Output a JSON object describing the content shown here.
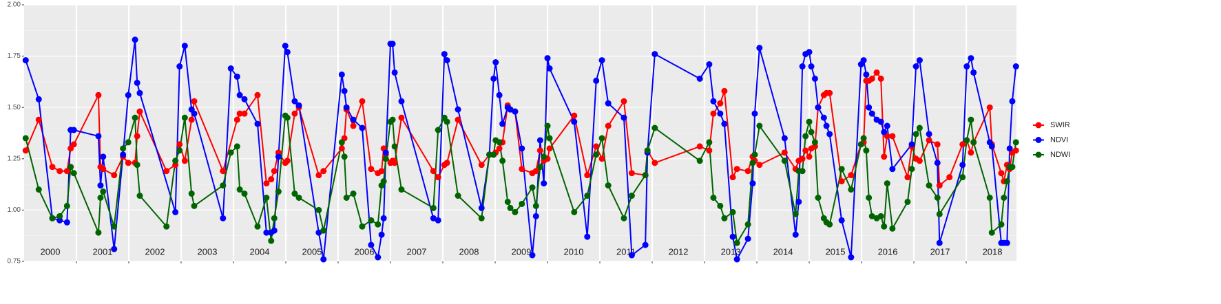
{
  "chart_data": {
    "type": "line",
    "xlim": [
      2000,
      2018.96
    ],
    "ylim": [
      0.75,
      2.0
    ],
    "yticks": [
      {
        "value": 0.75,
        "label": "0.75"
      },
      {
        "value": 1,
        "label": "1.00"
      },
      {
        "value": 1.25,
        "label": "1.25"
      },
      {
        "value": 1.5,
        "label": "1.50"
      },
      {
        "value": 1.75,
        "label": "1.75"
      },
      {
        "value": 2,
        "label": "2.00"
      }
    ],
    "xticks": [
      2001,
      2002,
      2003,
      2004,
      2005,
      2006,
      2007,
      2008,
      2009,
      2010,
      2011,
      2012,
      2013,
      2014,
      2015,
      2016,
      2017,
      2018
    ],
    "grid": true,
    "panel_labels": [
      "2000",
      "2001",
      "2002",
      "2003",
      "2004",
      "2005",
      "2006",
      "2007",
      "2008",
      "2009",
      "2010",
      "2011",
      "2012",
      "2013",
      "2014",
      "2015",
      "2016",
      "2017",
      "2018"
    ],
    "legend": "right",
    "series": [
      {
        "name": "SWIR",
        "color": "#ff0000",
        "x": [
          2000.03,
          2000.28,
          2000.54,
          2000.68,
          2000.82,
          2000.89,
          2000.95,
          2001.42,
          2001.46,
          2001.51,
          2001.72,
          2001.89,
          2001.99,
          2002.12,
          2002.16,
          2002.21,
          2002.72,
          2002.89,
          2002.97,
          2003.07,
          2003.2,
          2003.25,
          2003.8,
          2004.07,
          2004.12,
          2004.21,
          2004.46,
          2004.63,
          2004.72,
          2004.78,
          2004.86,
          2004.99,
          2005.03,
          2005.17,
          2005.25,
          2005.63,
          2005.72,
          2006.07,
          2006.12,
          2006.16,
          2006.29,
          2006.46,
          2006.63,
          2006.76,
          2006.83,
          2006.87,
          2006.91,
          2007.0,
          2007.04,
          2007.08,
          2007.21,
          2007.82,
          2007.91,
          2008.03,
          2008.08,
          2008.29,
          2008.74,
          2008.89,
          2008.97,
          2009.01,
          2009.08,
          2009.14,
          2009.24,
          2009.29,
          2009.38,
          2009.51,
          2009.71,
          2009.78,
          2009.86,
          2009.93,
          2010.0,
          2010.04,
          2010.51,
          2010.76,
          2010.93,
          2011.04,
          2011.16,
          2011.46,
          2011.61,
          2011.87,
          2011.91,
          2012.05,
          2012.91,
          2013.09,
          2013.17,
          2013.3,
          2013.38,
          2013.54,
          2013.62,
          2013.83,
          2013.92,
          2013.96,
          2014.05,
          2014.53,
          2014.74,
          2014.8,
          2014.87,
          2014.93,
          2015.0,
          2015.04,
          2015.11,
          2015.17,
          2015.28,
          2015.33,
          2015.39,
          2015.62,
          2015.8,
          2015.99,
          2016.04,
          2016.09,
          2016.14,
          2016.2,
          2016.29,
          2016.37,
          2016.43,
          2016.49,
          2016.59,
          2016.88,
          2016.96,
          2017.04,
          2017.11,
          2017.29,
          2017.45,
          2017.49,
          2017.68,
          2017.93,
          2018.01,
          2018.09,
          2018.14,
          2018.45,
          2018.49,
          2018.67,
          2018.72,
          2018.78,
          2018.83,
          2018.88,
          2018.95
        ],
        "values": [
          1.29,
          1.44,
          1.21,
          1.19,
          1.19,
          1.3,
          1.32,
          1.56,
          1.21,
          1.2,
          1.17,
          1.26,
          1.23,
          1.23,
          1.36,
          1.48,
          1.19,
          1.22,
          1.32,
          1.24,
          1.44,
          1.53,
          1.19,
          1.44,
          1.47,
          1.47,
          1.56,
          1.13,
          1.15,
          1.19,
          1.28,
          1.23,
          1.24,
          1.47,
          1.5,
          1.17,
          1.19,
          1.3,
          1.35,
          1.49,
          1.41,
          1.53,
          1.2,
          1.18,
          1.19,
          1.3,
          1.27,
          1.23,
          1.24,
          1.23,
          1.45,
          1.19,
          1.16,
          1.22,
          1.23,
          1.44,
          1.22,
          1.27,
          1.27,
          1.28,
          1.3,
          1.33,
          1.51,
          1.49,
          1.48,
          1.2,
          1.18,
          1.19,
          1.29,
          1.24,
          1.25,
          1.3,
          1.46,
          1.17,
          1.31,
          1.25,
          1.41,
          1.53,
          1.18,
          1.17,
          1.29,
          1.23,
          1.31,
          1.29,
          1.47,
          1.52,
          1.58,
          1.16,
          1.2,
          1.19,
          1.26,
          1.24,
          1.22,
          1.28,
          1.2,
          1.24,
          1.25,
          1.29,
          1.26,
          1.3,
          1.31,
          1.5,
          1.56,
          1.57,
          1.57,
          1.14,
          1.17,
          1.32,
          1.33,
          1.63,
          1.63,
          1.64,
          1.67,
          1.64,
          1.26,
          1.36,
          1.36,
          1.16,
          1.31,
          1.25,
          1.24,
          1.34,
          1.32,
          1.12,
          1.16,
          1.32,
          1.34,
          1.28,
          1.33,
          1.5,
          1.32,
          1.18,
          1.14,
          1.22,
          1.2,
          1.28,
          1.29
        ]
      },
      {
        "name": "NDVI",
        "color": "#0000ff",
        "x": [
          2000.03,
          2000.28,
          2000.54,
          2000.68,
          2000.82,
          2000.89,
          2000.95,
          2001.42,
          2001.46,
          2001.51,
          2001.72,
          2001.89,
          2001.99,
          2002.12,
          2002.16,
          2002.21,
          2002.89,
          2002.97,
          2003.07,
          2003.2,
          2003.25,
          2003.8,
          2003.95,
          2004.07,
          2004.12,
          2004.21,
          2004.46,
          2004.63,
          2004.72,
          2004.78,
          2004.86,
          2004.99,
          2005.03,
          2005.17,
          2005.25,
          2005.63,
          2005.72,
          2006.07,
          2006.12,
          2006.16,
          2006.29,
          2006.46,
          2006.63,
          2006.76,
          2006.83,
          2006.87,
          2006.91,
          2007.0,
          2007.04,
          2007.08,
          2007.21,
          2007.82,
          2007.91,
          2008.03,
          2008.08,
          2008.29,
          2008.74,
          2008.89,
          2008.97,
          2009.01,
          2009.08,
          2009.14,
          2009.24,
          2009.29,
          2009.38,
          2009.51,
          2009.71,
          2009.78,
          2009.86,
          2009.93,
          2010.0,
          2010.04,
          2010.51,
          2010.76,
          2010.93,
          2011.04,
          2011.16,
          2011.46,
          2011.61,
          2011.87,
          2011.91,
          2012.05,
          2012.91,
          2013.09,
          2013.17,
          2013.3,
          2013.38,
          2013.54,
          2013.62,
          2013.83,
          2013.92,
          2013.96,
          2014.05,
          2014.53,
          2014.74,
          2014.8,
          2014.87,
          2014.93,
          2015.0,
          2015.04,
          2015.11,
          2015.17,
          2015.28,
          2015.33,
          2015.39,
          2015.62,
          2015.8,
          2015.99,
          2016.04,
          2016.09,
          2016.14,
          2016.2,
          2016.29,
          2016.37,
          2016.43,
          2016.49,
          2016.59,
          2016.96,
          2017.04,
          2017.11,
          2017.29,
          2017.45,
          2017.49,
          2017.93,
          2018.01,
          2018.09,
          2018.14,
          2018.45,
          2018.49,
          2018.67,
          2018.72,
          2018.78,
          2018.83,
          2018.88,
          2018.95
        ],
        "values": [
          1.73,
          1.54,
          0.96,
          0.95,
          0.94,
          1.39,
          1.39,
          1.36,
          1.12,
          1.26,
          0.81,
          1.27,
          1.56,
          1.83,
          1.62,
          1.57,
          0.99,
          1.7,
          1.8,
          1.49,
          1.47,
          0.96,
          1.69,
          1.65,
          1.56,
          1.54,
          1.42,
          0.89,
          0.89,
          0.9,
          1.26,
          1.8,
          1.77,
          1.53,
          1.51,
          0.89,
          0.76,
          1.66,
          1.58,
          1.5,
          1.44,
          1.4,
          0.83,
          0.77,
          0.88,
          0.96,
          1.28,
          1.81,
          1.81,
          1.67,
          1.53,
          0.96,
          0.95,
          1.76,
          1.73,
          1.49,
          1.01,
          1.27,
          1.64,
          1.72,
          1.56,
          1.42,
          1.5,
          1.49,
          1.48,
          1.3,
          0.78,
          0.97,
          1.34,
          1.13,
          1.74,
          1.69,
          1.43,
          0.87,
          1.63,
          1.73,
          1.52,
          1.45,
          0.78,
          0.83,
          1.28,
          1.76,
          1.64,
          1.71,
          1.53,
          1.47,
          1.42,
          0.87,
          0.76,
          0.86,
          1.13,
          1.47,
          1.79,
          1.35,
          0.88,
          1.04,
          1.7,
          1.76,
          1.77,
          1.7,
          1.64,
          1.5,
          1.45,
          1.41,
          1.37,
          0.95,
          0.77,
          1.71,
          1.73,
          1.66,
          1.5,
          1.47,
          1.44,
          1.43,
          1.38,
          1.41,
          1.2,
          1.32,
          1.7,
          1.73,
          1.37,
          1.23,
          0.84,
          1.22,
          1.7,
          1.74,
          1.67,
          1.33,
          1.31,
          0.84,
          0.84,
          0.84,
          1.3,
          1.53,
          1.7
        ]
      },
      {
        "name": "NDWI",
        "color": "#006400",
        "x": [
          2000.03,
          2000.28,
          2000.54,
          2000.68,
          2000.82,
          2000.89,
          2000.95,
          2001.42,
          2001.46,
          2001.51,
          2001.72,
          2001.89,
          2001.99,
          2002.12,
          2002.16,
          2002.21,
          2002.72,
          2002.89,
          2002.97,
          2003.07,
          2003.2,
          2003.25,
          2003.8,
          2003.95,
          2004.07,
          2004.12,
          2004.21,
          2004.46,
          2004.63,
          2004.72,
          2004.78,
          2004.86,
          2004.99,
          2005.03,
          2005.17,
          2005.25,
          2005.63,
          2005.72,
          2006.07,
          2006.12,
          2006.16,
          2006.29,
          2006.46,
          2006.63,
          2006.76,
          2006.83,
          2006.87,
          2006.91,
          2007.0,
          2007.04,
          2007.08,
          2007.21,
          2007.82,
          2007.91,
          2008.03,
          2008.08,
          2008.29,
          2008.74,
          2008.89,
          2008.97,
          2009.01,
          2009.08,
          2009.14,
          2009.24,
          2009.29,
          2009.38,
          2009.51,
          2009.71,
          2009.78,
          2009.86,
          2009.93,
          2010.0,
          2010.04,
          2010.51,
          2010.76,
          2010.93,
          2011.04,
          2011.16,
          2011.46,
          2011.61,
          2011.87,
          2011.91,
          2012.05,
          2012.91,
          2013.09,
          2013.17,
          2013.3,
          2013.38,
          2013.54,
          2013.62,
          2013.83,
          2013.92,
          2013.96,
          2014.05,
          2014.53,
          2014.74,
          2014.8,
          2014.87,
          2014.93,
          2015.0,
          2015.04,
          2015.11,
          2015.17,
          2015.28,
          2015.33,
          2015.39,
          2015.62,
          2015.8,
          2015.99,
          2016.04,
          2016.09,
          2016.14,
          2016.2,
          2016.29,
          2016.37,
          2016.43,
          2016.49,
          2016.59,
          2016.88,
          2016.96,
          2017.04,
          2017.11,
          2017.29,
          2017.45,
          2017.49,
          2017.93,
          2018.01,
          2018.09,
          2018.14,
          2018.45,
          2018.49,
          2018.67,
          2018.72,
          2018.78,
          2018.83,
          2018.88,
          2018.95
        ],
        "values": [
          1.35,
          1.1,
          0.96,
          0.97,
          1.02,
          1.21,
          1.18,
          0.89,
          1.06,
          1.09,
          0.92,
          1.3,
          1.33,
          1.45,
          1.22,
          1.07,
          0.92,
          1.24,
          1.29,
          1.45,
          1.08,
          1.02,
          1.12,
          1.28,
          1.31,
          1.1,
          1.08,
          0.92,
          1.06,
          0.85,
          0.96,
          1.09,
          1.46,
          1.45,
          1.08,
          1.06,
          1.0,
          0.9,
          1.33,
          1.26,
          1.06,
          1.08,
          0.92,
          0.95,
          0.93,
          1.12,
          1.14,
          1.25,
          1.43,
          1.44,
          1.31,
          1.1,
          1.01,
          1.39,
          1.45,
          1.43,
          1.07,
          0.96,
          1.27,
          1.27,
          1.34,
          1.33,
          1.24,
          1.04,
          1.01,
          0.99,
          1.03,
          1.11,
          1.02,
          1.21,
          1.26,
          1.41,
          1.35,
          0.99,
          1.07,
          1.27,
          1.35,
          1.12,
          0.96,
          1.07,
          1.17,
          1.29,
          1.4,
          1.24,
          1.33,
          1.06,
          1.02,
          0.96,
          0.99,
          0.84,
          0.93,
          1.23,
          1.27,
          1.41,
          1.24,
          0.98,
          1.19,
          1.19,
          1.36,
          1.43,
          1.38,
          1.33,
          1.06,
          0.96,
          0.94,
          0.93,
          1.2,
          1.1,
          1.32,
          1.35,
          1.29,
          1.06,
          0.97,
          0.96,
          0.97,
          0.92,
          1.13,
          0.91,
          1.04,
          1.2,
          1.37,
          1.4,
          1.12,
          1.06,
          0.98,
          1.16,
          1.34,
          1.44,
          1.33,
          1.06,
          0.89,
          0.93,
          1.06,
          1.14,
          1.21,
          1.21,
          1.33
        ]
      }
    ]
  }
}
